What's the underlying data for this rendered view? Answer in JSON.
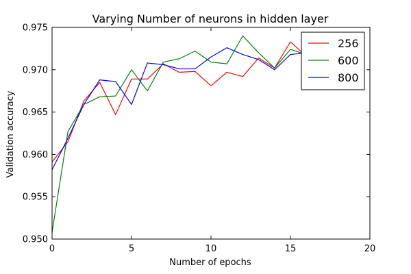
{
  "chart_data": {
    "type": "line",
    "title": "Varying Number of neurons in hidden layer",
    "xlabel": "Number of epochs",
    "ylabel": "Validation accuracy",
    "xlim": [
      0,
      20
    ],
    "ylim": [
      0.95,
      0.975
    ],
    "xticks": [
      "0",
      "5",
      "10",
      "15",
      "20"
    ],
    "yticks": [
      "0.950",
      "0.955",
      "0.960",
      "0.965",
      "0.970",
      "0.975"
    ],
    "grid": false,
    "legend_position": "top-right",
    "series": [
      {
        "name": "256",
        "color": "#ff0000",
        "x": [
          0,
          1,
          2,
          3,
          4,
          5,
          6,
          7,
          8,
          9,
          10,
          11,
          12,
          13,
          14,
          15,
          16
        ],
        "y": [
          0.9591,
          0.9615,
          0.9663,
          0.9685,
          0.9647,
          0.9689,
          0.9689,
          0.9707,
          0.9697,
          0.9698,
          0.9681,
          0.9697,
          0.9692,
          0.9714,
          0.9702,
          0.9733,
          0.9716
        ]
      },
      {
        "name": "600",
        "color": "#008000",
        "x": [
          0,
          1,
          2,
          3,
          4,
          5,
          6,
          7,
          8,
          9,
          10,
          11,
          12,
          13,
          14,
          15,
          16
        ],
        "y": [
          0.9508,
          0.9627,
          0.9659,
          0.9668,
          0.9669,
          0.97,
          0.9675,
          0.9709,
          0.9713,
          0.9722,
          0.9709,
          0.9707,
          0.974,
          0.972,
          0.9702,
          0.9724,
          0.9718
        ]
      },
      {
        "name": "800",
        "color": "#0000ff",
        "x": [
          0,
          1,
          2,
          3,
          4,
          5,
          6,
          7,
          8,
          9,
          10,
          11,
          12,
          13,
          14,
          15,
          16
        ],
        "y": [
          0.9582,
          0.9619,
          0.9659,
          0.9688,
          0.9686,
          0.9659,
          0.9708,
          0.9706,
          0.9701,
          0.9701,
          0.9715,
          0.9726,
          0.9718,
          0.9712,
          0.97,
          0.9718,
          0.972
        ]
      }
    ]
  }
}
